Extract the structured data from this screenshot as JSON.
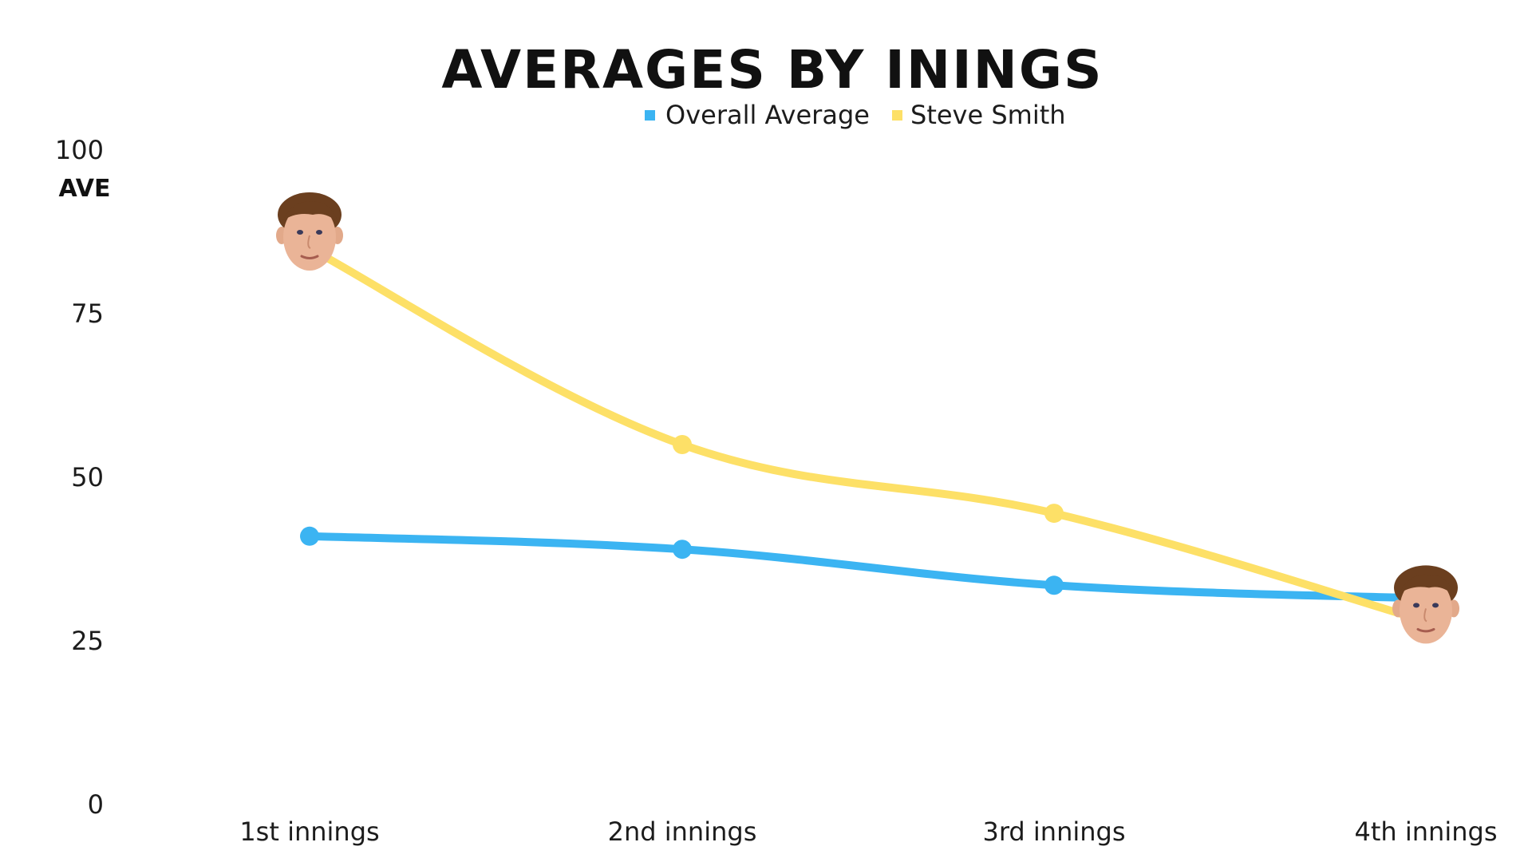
{
  "chart_data": {
    "type": "line",
    "title": "AVERAGES BY ININGS",
    "ylabel": "AVE",
    "xlabel": "",
    "ylim": [
      0,
      100
    ],
    "yticks": [
      0,
      25,
      50,
      75,
      100
    ],
    "grid": false,
    "legend_position": "top-center",
    "categories": [
      "1st innings",
      "2nd innings",
      "3rd innings",
      "4th innings"
    ],
    "series": [
      {
        "name": "Overall Average",
        "color": "#3bb4f2",
        "values": [
          41,
          39,
          33.5,
          31.5
        ]
      },
      {
        "name": "Steve Smith",
        "color": "#fde067",
        "values": [
          85,
          55,
          44.5,
          28
        ]
      }
    ],
    "annotations": [
      {
        "type": "player-face-icon",
        "series": "Steve Smith",
        "category": "1st innings"
      },
      {
        "type": "player-face-icon",
        "series": "Steve Smith",
        "category": "4th innings"
      }
    ]
  }
}
